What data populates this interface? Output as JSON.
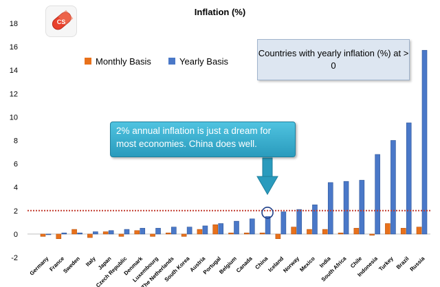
{
  "chart_data": {
    "type": "bar",
    "title": "Inflation (%)",
    "ylim": [
      -2,
      18
    ],
    "yticks": [
      -2,
      0,
      2,
      4,
      6,
      8,
      10,
      12,
      14,
      16,
      18
    ],
    "reference_line": 2,
    "categories": [
      "Germany",
      "France",
      "Sweden",
      "Italy",
      "Japan",
      "Czech Republic",
      "Denmark",
      "Luxembourg",
      "The Netherlands",
      "South Korea",
      "Austria",
      "Portugal",
      "Belgium",
      "Canada",
      "China",
      "Iceland",
      "Norway",
      "Mexico",
      "India",
      "South Africa",
      "Chile",
      "Indonesia",
      "Turkey",
      "Brazil",
      "Russia"
    ],
    "series": [
      {
        "name": "Monthly Basis",
        "color": "#e8711b",
        "values": [
          -0.2,
          -0.4,
          0.4,
          -0.3,
          0.2,
          -0.2,
          0.3,
          -0.2,
          0.1,
          -0.2,
          0.4,
          0.8,
          0.1,
          0.1,
          0.1,
          -0.4,
          0.6,
          0.4,
          0.4,
          0.1,
          0.5,
          -0.1,
          0.9,
          0.5,
          0.6
        ]
      },
      {
        "name": "Yearly Basis",
        "color": "#4a78c8",
        "values": [
          0.0,
          0.1,
          0.1,
          0.2,
          0.3,
          0.4,
          0.5,
          0.5,
          0.6,
          0.6,
          0.7,
          0.9,
          1.1,
          1.3,
          1.5,
          1.9,
          2.1,
          2.5,
          4.4,
          4.5,
          4.6,
          6.8,
          8.0,
          9.5,
          15.7
        ]
      }
    ],
    "legend_position": "top-center",
    "grid": false
  },
  "annotations": {
    "note": "Countries with yearly inflation (%) at > 0",
    "callout": "2% annual inflation is just a dream for most economies. China does well."
  },
  "logo": {
    "icon": "pill-icon",
    "colors": [
      "#e8412c",
      "#ffffff"
    ],
    "text": "CS"
  }
}
